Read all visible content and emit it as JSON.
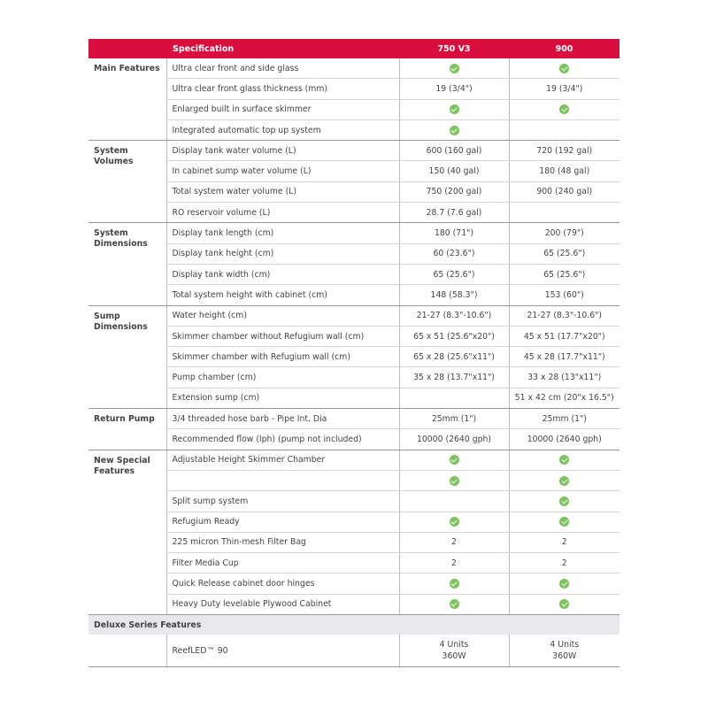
{
  "header": {
    "spec": "Specification",
    "model1": "750 V3",
    "model2": "900"
  },
  "colors": {
    "header": "#d90e3f",
    "check": "#7cc35d"
  },
  "groups": [
    {
      "category": "Main Features",
      "rows": [
        {
          "spec": "Ultra clear front and side glass",
          "v1": "check",
          "v2": "check"
        },
        {
          "spec": "Ultra clear front glass thickness (mm)",
          "v1": "19 (3/4\")",
          "v2": "19 (3/4\")"
        },
        {
          "spec": "Enlarged built in surface skimmer",
          "v1": "check",
          "v2": "check"
        },
        {
          "spec": "Integrated automatic top up system",
          "v1": "check",
          "v2": ""
        }
      ]
    },
    {
      "category": "System Volumes",
      "rows": [
        {
          "spec": "Display tank water volume (L)",
          "v1": "600 (160 gal)",
          "v2": "720 (192 gal)"
        },
        {
          "spec": "In cabinet sump water volume (L)",
          "v1": "150 (40 gal)",
          "v2": "180 (48 gal)"
        },
        {
          "spec": "Total system water volume (L)",
          "v1": "750 (200 gal)",
          "v2": "900 (240 gal)"
        },
        {
          "spec": "RO reservoir volume (L)",
          "v1": "28.7 (7.6 gal)",
          "v2": ""
        }
      ]
    },
    {
      "category": "System Dimensions",
      "rows": [
        {
          "spec": "Display tank length (cm)",
          "v1": "180 (71\")",
          "v2": "200 (79\")"
        },
        {
          "spec": "Display tank height (cm)",
          "v1": "60 (23.6\")",
          "v2": "65 (25.6\")"
        },
        {
          "spec": "Display tank width (cm)",
          "v1": "65 (25.6\")",
          "v2": "65 (25.6\")"
        },
        {
          "spec": "Total system height with cabinet (cm)",
          "v1": "148 (58.3\")",
          "v2": "153 (60\")"
        }
      ]
    },
    {
      "category": "Sump Dimensions",
      "rows": [
        {
          "spec": "Water height (cm)",
          "v1": "21-27 (8.3\"-10.6\")",
          "v2": "21-27 (8.3\"-10.6\")"
        },
        {
          "spec": "Skimmer chamber without Refugium wall (cm)",
          "v1": "65 x 51 (25.6\"x20\")",
          "v2": "45 x 51 (17.7\"x20\")"
        },
        {
          "spec": "Skimmer chamber with Refugium wall (cm)",
          "v1": "65 x 28 (25.6\"x11\")",
          "v2": "45 x 28 (17.7\"x11\")"
        },
        {
          "spec": "Pump chamber (cm)",
          "v1": "35 x 28 (13.7\"x11\")",
          "v2": "33 x 28 (13\"x11\")"
        },
        {
          "spec": "Extension sump (cm)",
          "v1": "",
          "v2": "51 x 42 cm (20\"x 16.5\")"
        }
      ]
    },
    {
      "category": "Return Pump",
      "rows": [
        {
          "spec": "3/4 threaded hose barb - Pipe Int. Dia",
          "v1": "25mm (1\")",
          "v2": "25mm (1\")"
        },
        {
          "spec": "Recommended flow (lph) (pump not included)",
          "v1": "10000 (2640 gph)",
          "v2": "10000 (2640 gph)"
        }
      ]
    },
    {
      "category": "New Special Features",
      "rows": [
        {
          "spec": "Adjustable Height Skimmer Chamber",
          "v1": "check",
          "v2": "check"
        },
        {
          "spec": "",
          "v1": "check",
          "v2": "check"
        },
        {
          "spec": "Split sump system",
          "v1": "",
          "v2": "check"
        },
        {
          "spec": "Refugium Ready",
          "v1": "check",
          "v2": "check"
        },
        {
          "spec": "225 micron Thin-mesh Filter Bag",
          "v1": "2",
          "v2": "2"
        },
        {
          "spec": "Filter Media Cup",
          "v1": "2",
          "v2": "2"
        },
        {
          "spec": "Quick Release cabinet door hinges",
          "v1": "check",
          "v2": "check"
        },
        {
          "spec": "Heavy Duty levelable Plywood Cabinet",
          "v1": "check",
          "v2": "check"
        }
      ]
    }
  ],
  "deluxe": {
    "title": "Deluxe Series Features",
    "spec": "ReefLED™ 90",
    "v1_line1": "4 Units",
    "v1_line2": "360W",
    "v2_line1": "4 Units",
    "v2_line2": "360W"
  }
}
